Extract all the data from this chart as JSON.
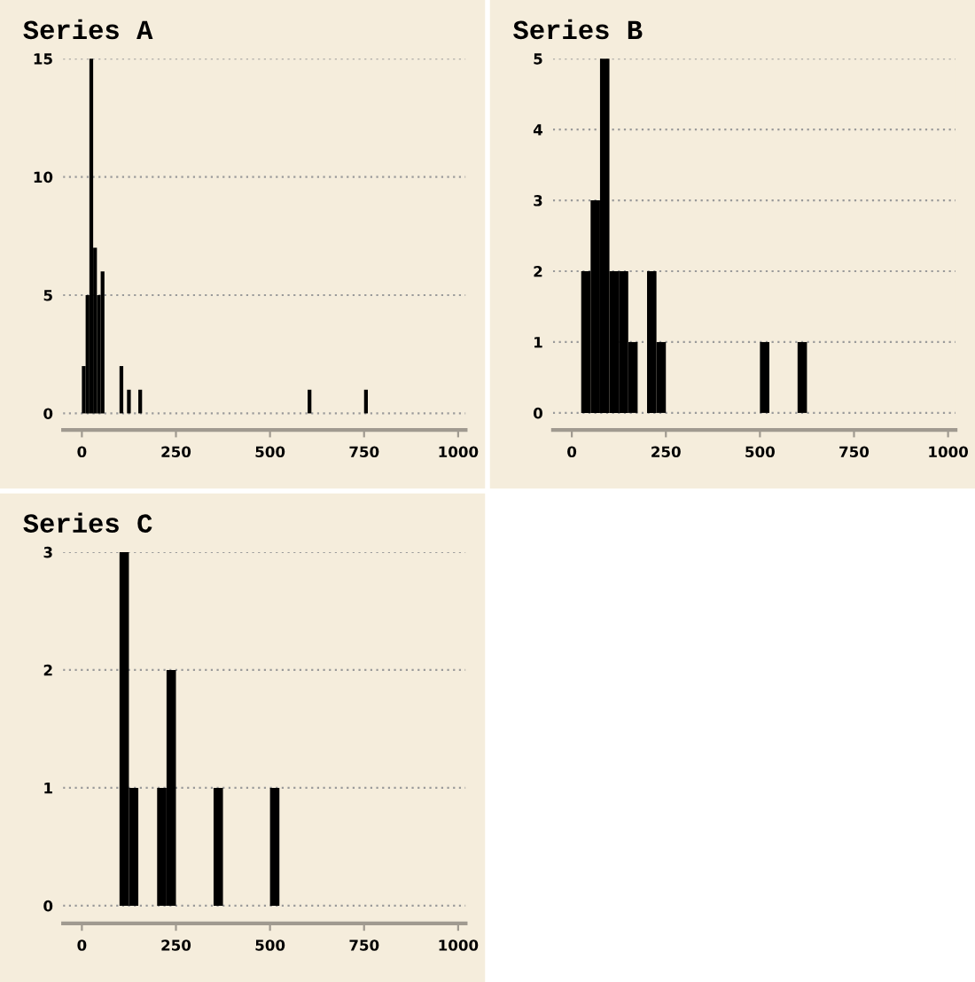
{
  "chart_data": [
    {
      "type": "histogram",
      "title": "Series A",
      "color": "#000000",
      "bins": [
        0,
        10,
        20,
        30,
        40,
        50,
        60,
        70,
        80,
        90,
        100,
        110,
        120,
        130,
        140,
        150,
        160,
        170,
        180,
        190,
        200,
        210,
        220,
        230,
        240,
        250,
        260,
        270,
        280,
        290,
        300,
        310,
        320,
        330,
        340,
        350,
        360,
        370,
        380,
        390,
        400,
        410,
        420,
        430,
        440,
        450,
        460,
        470,
        480,
        490,
        500,
        510,
        520,
        530,
        540,
        550,
        560,
        570,
        580,
        590,
        600,
        610,
        620,
        630,
        640,
        650,
        660,
        670,
        680,
        690,
        700,
        710,
        720,
        730,
        740,
        750,
        760
      ],
      "values": [
        2,
        5,
        15,
        7,
        5,
        6,
        0,
        0,
        0,
        0,
        2,
        0,
        1,
        0,
        0,
        1,
        0,
        0,
        0,
        0,
        0,
        0,
        0,
        0,
        0,
        0,
        0,
        0,
        0,
        0,
        0,
        0,
        0,
        0,
        0,
        0,
        0,
        0,
        0,
        0,
        0,
        0,
        0,
        0,
        0,
        0,
        0,
        0,
        0,
        0,
        0,
        0,
        0,
        0,
        0,
        0,
        0,
        0,
        0,
        0,
        1,
        0,
        0,
        0,
        0,
        0,
        0,
        0,
        0,
        0,
        0,
        0,
        0,
        0,
        0,
        1
      ],
      "xlim": [
        -50,
        1020
      ],
      "xticks": [
        0,
        250,
        500,
        750,
        1000
      ],
      "ylim": [
        -0.7,
        15
      ],
      "yticks": [
        0,
        5,
        10,
        15
      ],
      "grid": "y"
    },
    {
      "type": "histogram",
      "title": "Series B",
      "color": "#000000",
      "bins": [
        25,
        50,
        75,
        100,
        125,
        150,
        175,
        200,
        225,
        250,
        275,
        300,
        325,
        350,
        375,
        400,
        425,
        450,
        475,
        500,
        525,
        550,
        575,
        600,
        625
      ],
      "values": [
        2,
        3,
        5,
        2,
        2,
        1,
        0,
        2,
        1,
        0,
        0,
        0,
        0,
        0,
        0,
        0,
        0,
        0,
        0,
        1,
        0,
        0,
        0,
        1
      ],
      "xlim": [
        -50,
        1020
      ],
      "xticks": [
        0,
        250,
        500,
        750,
        1000
      ],
      "ylim": [
        -0.24,
        5
      ],
      "yticks": [
        0,
        1,
        2,
        3,
        4,
        5
      ],
      "grid": "y"
    },
    {
      "type": "histogram",
      "title": "Series C",
      "color": "#000000",
      "bins": [
        100,
        125,
        150,
        175,
        200,
        225,
        250,
        275,
        300,
        325,
        350,
        375,
        400,
        425,
        450,
        475,
        500,
        525
      ],
      "values": [
        3,
        1,
        0,
        0,
        1,
        2,
        0,
        0,
        0,
        0,
        1,
        0,
        0,
        0,
        0,
        0,
        1
      ],
      "xlim": [
        -50,
        1020
      ],
      "xticks": [
        0,
        250,
        500,
        750,
        1000
      ],
      "ylim": [
        -0.15,
        3
      ],
      "yticks": [
        0,
        1,
        2,
        3
      ],
      "grid": "y"
    }
  ]
}
